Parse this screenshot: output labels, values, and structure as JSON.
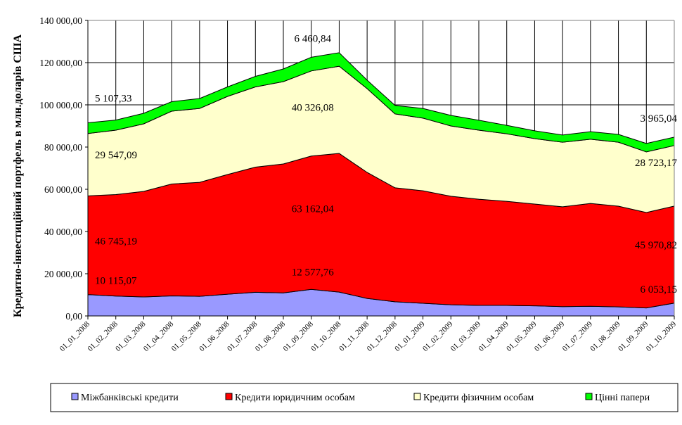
{
  "chart_data": {
    "type": "area",
    "stacked": true,
    "title": "",
    "xlabel": "",
    "ylabel": "Кредитно-інвестиційний портфель в млн.доларів США",
    "ylim": [
      0,
      140000
    ],
    "yticks": [
      0,
      20000,
      40000,
      60000,
      80000,
      100000,
      120000,
      140000
    ],
    "ytick_labels": [
      "0,00",
      "20 000,00",
      "40 000,00",
      "60 000,00",
      "80 000,00",
      "100 000,00",
      "120 000,00",
      "140 000,00"
    ],
    "grid": true,
    "legend_position": "bottom",
    "categories": [
      "01_01_2008",
      "01_02_2008",
      "01_03_2008",
      "01_04_2008",
      "01_05_2008",
      "01_06_2008",
      "01_07_2008",
      "01_08_2008",
      "01_09_2008",
      "01_10_2008",
      "01_11_2008",
      "01_12_2008",
      "01_01_2009",
      "01_02_2009",
      "01_03_2009",
      "01_04_2009",
      "01_05_2009",
      "01_06_2009",
      "01_07_2009",
      "01_08_2009",
      "01_09_2009",
      "01_10_2009"
    ],
    "series": [
      {
        "name": "Міжбанківські кредити",
        "color": "#9999FF",
        "values": [
          10115.07,
          9400,
          9000,
          9500,
          9300,
          10300,
          11200,
          10900,
          12577.76,
          11300,
          8300,
          6700,
          6000,
          5300,
          5000,
          5000,
          4800,
          4400,
          4600,
          4300,
          3800,
          6053.15
        ]
      },
      {
        "name": "Кредити юридичним особам",
        "color": "#FF0000",
        "values": [
          46745.19,
          48100,
          50000,
          53000,
          54000,
          56700,
          59300,
          61100,
          63162.04,
          65700,
          59700,
          54000,
          53300,
          51400,
          50300,
          49300,
          48200,
          47300,
          48700,
          47700,
          45200,
          45970.82
        ]
      },
      {
        "name": "Кредити фізичним особам",
        "color": "#FFFFCC",
        "values": [
          29547.09,
          30500,
          32000,
          34500,
          35000,
          37000,
          38000,
          39000,
          40326.08,
          41300,
          39700,
          35000,
          34400,
          33300,
          32700,
          32000,
          31000,
          30600,
          30400,
          30300,
          28700,
          28723.17
        ]
      },
      {
        "name": "Цінні папери",
        "color": "#00FF00",
        "values": [
          5107.33,
          4800,
          5000,
          4500,
          4700,
          4500,
          5000,
          6000,
          6460.84,
          6400,
          4000,
          4000,
          4600,
          5000,
          4700,
          4000,
          3700,
          3400,
          3600,
          3700,
          4000,
          3965.04
        ]
      }
    ],
    "data_labels": [
      {
        "series": 3,
        "index": 0,
        "text": "5 107,33"
      },
      {
        "series": 2,
        "index": 0,
        "text": "29 547,09"
      },
      {
        "series": 1,
        "index": 0,
        "text": "46 745,19"
      },
      {
        "series": 0,
        "index": 0,
        "text": "10 115,07"
      },
      {
        "series": 3,
        "index": 8,
        "text": "6 460,84"
      },
      {
        "series": 2,
        "index": 8,
        "text": "40 326,08"
      },
      {
        "series": 1,
        "index": 8,
        "text": "63 162,04"
      },
      {
        "series": 0,
        "index": 8,
        "text": "12 577,76"
      },
      {
        "series": 3,
        "index": 21,
        "text": "3 965,04"
      },
      {
        "series": 2,
        "index": 21,
        "text": "28 723,17"
      },
      {
        "series": 1,
        "index": 21,
        "text": "45 970,82"
      },
      {
        "series": 0,
        "index": 21,
        "text": "6 053,15"
      }
    ]
  }
}
